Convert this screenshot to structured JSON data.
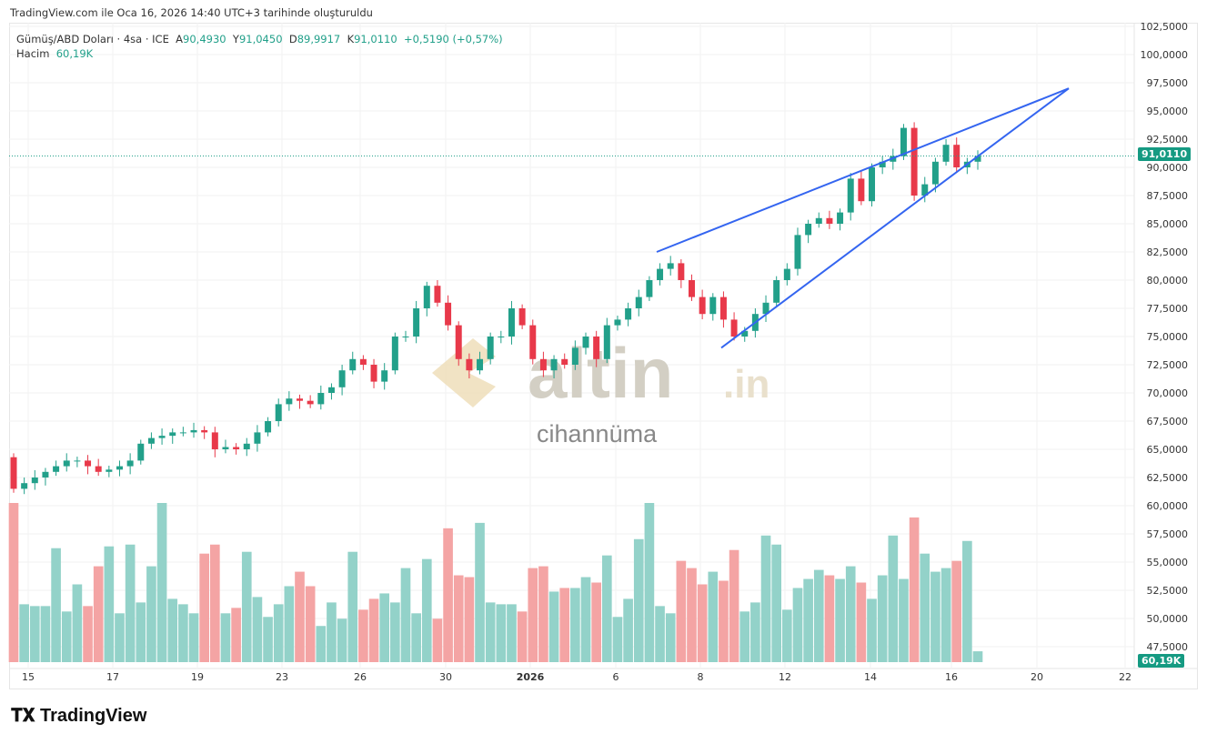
{
  "credit": "TradingView.com ile Oca 16, 2026 14:40 UTC+3 tarihinde oluşturuldu",
  "legend": {
    "symbol": "Gümüş/ABD Doları · 4sa · ICE",
    "o_label": "A",
    "o": "90,4930",
    "h_label": "Y",
    "h": "91,0450",
    "l_label": "D",
    "l": "89,9917",
    "c_label": "K",
    "c": "91,0110",
    "change": "+0,5190 (+0,57%)",
    "vol_label": "Hacim",
    "vol": "60,19K"
  },
  "price_tag": "91,0110",
  "volume_tag": "60,19K",
  "watermark": {
    "brand": "altin.in",
    "sub": "cihannüma"
  },
  "footer_logo": "TradingView",
  "colors": {
    "up": "#22a08a",
    "down": "#e8394a",
    "vol_up": "#93d2c9",
    "vol_down": "#f4a4a4",
    "trend": "#3465f0"
  },
  "chart_data": {
    "type": "candlestick",
    "title": "Gümüş/ABD Doları · 4sa · ICE",
    "first_open": 64.3,
    "closes": [
      61.5,
      62,
      62.5,
      63,
      63.5,
      64,
      64,
      63.5,
      63,
      63.2,
      63.5,
      64,
      65.5,
      66,
      66.2,
      66.5,
      66.5,
      66.7,
      66.5,
      65,
      65.2,
      65,
      65.5,
      66.5,
      67.5,
      69,
      69.5,
      69.3,
      69,
      70,
      70.5,
      72,
      73,
      72.5,
      71,
      72,
      75,
      75,
      77.5,
      79.5,
      78,
      76,
      73,
      72,
      73,
      75,
      75,
      77.5,
      76,
      73,
      72,
      73,
      72.5,
      74,
      75,
      73,
      76,
      76.5,
      77.5,
      78.5,
      80,
      81,
      81.5,
      80,
      78.5,
      77,
      78.5,
      76.5,
      75,
      75.5,
      77,
      78,
      80,
      81,
      84,
      85,
      85.5,
      85,
      86,
      89,
      87,
      90,
      90.5,
      91,
      93.5,
      87.5,
      88.5,
      90.5,
      92,
      90,
      90.5,
      91.011
    ],
    "volumes_k": [
      880,
      320,
      310,
      310,
      630,
      280,
      430,
      310,
      530,
      640,
      270,
      650,
      330,
      530,
      880,
      350,
      320,
      270,
      600,
      650,
      270,
      300,
      610,
      360,
      250,
      320,
      420,
      500,
      420,
      200,
      330,
      240,
      610,
      290,
      350,
      380,
      330,
      520,
      270,
      570,
      240,
      740,
      480,
      470,
      770,
      330,
      320,
      320,
      280,
      520,
      530,
      390,
      410,
      410,
      470,
      440,
      590,
      250,
      350,
      680,
      880,
      310,
      270,
      560,
      520,
      430,
      500,
      450,
      620,
      280,
      330,
      700,
      650,
      290,
      410,
      460,
      510,
      480,
      460,
      530,
      440,
      350,
      480,
      700,
      460,
      800,
      600,
      500,
      520,
      560,
      670,
      60
    ],
    "y_ticks": [
      "102,5000",
      "100,0000",
      "97,5000",
      "95,0000",
      "92,5000",
      "90,0000",
      "87,5000",
      "85,0000",
      "82,5000",
      "80,0000",
      "77,5000",
      "75,0000",
      "72,5000",
      "70,0000",
      "67,5000",
      "65,0000",
      "62,5000",
      "60,0000",
      "57,5000",
      "55,0000",
      "52,5000",
      "50,0000",
      "47,5000"
    ],
    "x_ticks": [
      "15",
      "17",
      "19",
      "23",
      "26",
      "30",
      "2026",
      "6",
      "8",
      "12",
      "14",
      "16",
      "20",
      "22"
    ],
    "trendlines": [
      {
        "name": "upper",
        "from": 82.5,
        "to": 97
      },
      {
        "name": "lower",
        "from": 74,
        "to": 97
      }
    ],
    "last_price": 91.011
  }
}
